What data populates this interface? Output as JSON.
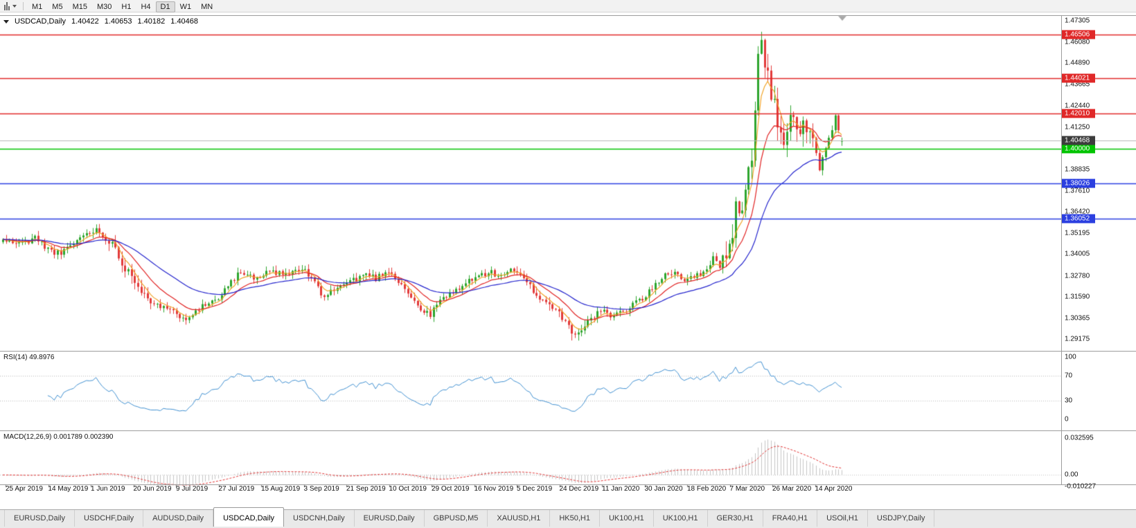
{
  "toolbar": {
    "periods": [
      "M1",
      "M5",
      "M15",
      "M30",
      "H1",
      "H4",
      "D1",
      "W1",
      "MN"
    ],
    "active_period": "D1",
    "icons": [
      "candlestick-chart-icon",
      "chart-menu-caret-icon"
    ]
  },
  "chart": {
    "info": {
      "symbol": "USDCAD,Daily",
      "open": "1.40422",
      "high": "1.40653",
      "low": "1.40182",
      "close": "1.40468"
    },
    "price_axis": {
      "scale": [
        "1.47305",
        "1.46080",
        "1.44890",
        "1.43665",
        "1.42440",
        "1.41250",
        "1.38835",
        "1.37610",
        "1.36420",
        "1.35195",
        "1.34005",
        "1.32780",
        "1.31590",
        "1.30365",
        "1.29175"
      ]
    },
    "levels": [
      {
        "name": "resistance-1",
        "price": "1.46506",
        "line_color": "#e02828",
        "badge_bg": "#e02828",
        "badge_fg": "#ffffff"
      },
      {
        "name": "resistance-2",
        "price": "1.44021",
        "line_color": "#e02828",
        "badge_bg": "#e02828",
        "badge_fg": "#ffffff"
      },
      {
        "name": "resistance-3",
        "price": "1.42010",
        "line_color": "#e02828",
        "badge_bg": "#e02828",
        "badge_fg": "#ffffff"
      },
      {
        "name": "round-level",
        "price": "1.40000",
        "line_color": "#00c400",
        "badge_bg": "#00c400",
        "badge_fg": "#ffffff"
      },
      {
        "name": "support-1",
        "price": "1.38026",
        "line_color": "#2b3fe0",
        "badge_bg": "#2b3fe0",
        "badge_fg": "#ffffff"
      },
      {
        "name": "support-2",
        "price": "1.36052",
        "line_color": "#2b3fe0",
        "badge_bg": "#2b3fe0",
        "badge_fg": "#ffffff"
      }
    ],
    "current_price": {
      "price": "1.40468",
      "line_color": "#b8b8b8",
      "badge_bg": "#3c3c3c",
      "badge_fg": "#ffffff"
    }
  },
  "rsi_pane": {
    "label": "RSI(14) 49.8976",
    "scale": [
      {
        "text": "100",
        "value": 100
      },
      {
        "text": "70",
        "value": 70
      },
      {
        "text": "30",
        "value": 30
      },
      {
        "text": "0",
        "value": 0
      }
    ],
    "levels": [
      70,
      30
    ],
    "line_color": "#3f8fd0"
  },
  "macd_pane": {
    "label": "MACD(12,26,9) 0.001789 0.002390",
    "scale": [
      {
        "text": "0.032595",
        "value": 0.032595
      },
      {
        "text": "0.00",
        "value": 0
      },
      {
        "text": "-0.010227",
        "value": -0.010227
      }
    ],
    "histogram_color": "#c4c4c4",
    "signal_color": "#e03232"
  },
  "chart_data": {
    "type": "candlestick",
    "symbol": "USDCAD",
    "timeframe": "Daily",
    "title": "USDCAD,Daily",
    "current_ohlc": {
      "open": 1.40422,
      "high": 1.40653,
      "low": 1.40182,
      "close": 1.40468
    },
    "y_range": [
      1.29175,
      1.47305
    ],
    "candle_count": 262,
    "x_tick_labels": [
      "25 Apr 2019",
      "14 May 2019",
      "1 Jun 2019",
      "20 Jun 2019",
      "9 Jul 2019",
      "27 Jul 2019",
      "15 Aug 2019",
      "3 Sep 2019",
      "21 Sep 2019",
      "10 Oct 2019",
      "29 Oct 2019",
      "16 Nov 2019",
      "5 Dec 2019",
      "24 Dec 2019",
      "11 Jan 2020",
      "30 Jan 2020",
      "18 Feb 2020",
      "7 Mar 2020",
      "26 Mar 2020",
      "14 Apr 2020"
    ],
    "up_color": "#2da52d",
    "down_color": "#e23a3a",
    "price_anchors": [
      [
        0,
        1.348
      ],
      [
        6,
        1.346
      ],
      [
        10,
        1.3495
      ],
      [
        14,
        1.343
      ],
      [
        18,
        1.34
      ],
      [
        22,
        1.3465
      ],
      [
        26,
        1.352
      ],
      [
        29,
        1.354
      ],
      [
        33,
        1.348
      ],
      [
        38,
        1.333
      ],
      [
        41,
        1.325
      ],
      [
        45,
        1.316
      ],
      [
        49,
        1.31
      ],
      [
        54,
        1.306
      ],
      [
        57,
        1.304
      ],
      [
        60,
        1.3085
      ],
      [
        64,
        1.312
      ],
      [
        67,
        1.316
      ],
      [
        70,
        1.323
      ],
      [
        74,
        1.33
      ],
      [
        77,
        1.327
      ],
      [
        80,
        1.325
      ],
      [
        83,
        1.331
      ],
      [
        87,
        1.328
      ],
      [
        90,
        1.33
      ],
      [
        94,
        1.331
      ],
      [
        97,
        1.323
      ],
      [
        100,
        1.316
      ],
      [
        103,
        1.32
      ],
      [
        107,
        1.324
      ],
      [
        110,
        1.326
      ],
      [
        113,
        1.329
      ],
      [
        116,
        1.3265
      ],
      [
        120,
        1.331
      ],
      [
        124,
        1.323
      ],
      [
        128,
        1.313
      ],
      [
        131,
        1.307
      ],
      [
        133,
        1.3055
      ],
      [
        136,
        1.314
      ],
      [
        140,
        1.318
      ],
      [
        143,
        1.323
      ],
      [
        147,
        1.3265
      ],
      [
        151,
        1.33
      ],
      [
        154,
        1.328
      ],
      [
        158,
        1.3305
      ],
      [
        160,
        1.329
      ],
      [
        163,
        1.324
      ],
      [
        166,
        1.317
      ],
      [
        169,
        1.313
      ],
      [
        173,
        1.307
      ],
      [
        176,
        1.2985
      ],
      [
        178,
        1.2955
      ],
      [
        181,
        1.2995
      ],
      [
        184,
        1.305
      ],
      [
        186,
        1.308
      ],
      [
        189,
        1.3045
      ],
      [
        193,
        1.307
      ],
      [
        196,
        1.312
      ],
      [
        200,
        1.316
      ],
      [
        203,
        1.323
      ],
      [
        206,
        1.329
      ],
      [
        209,
        1.33
      ],
      [
        211,
        1.327
      ],
      [
        213,
        1.325
      ],
      [
        216,
        1.328
      ],
      [
        219,
        1.332
      ],
      [
        221,
        1.338
      ],
      [
        223,
        1.334
      ],
      [
        226,
        1.342
      ],
      [
        228,
        1.366
      ],
      [
        229,
        1.36
      ],
      [
        231,
        1.376
      ],
      [
        233,
        1.398
      ],
      [
        234,
        1.425
      ],
      [
        235,
        1.451
      ],
      [
        236,
        1.462
      ],
      [
        237,
        1.448
      ],
      [
        239,
        1.432
      ],
      [
        241,
        1.415
      ],
      [
        243,
        1.406
      ],
      [
        245,
        1.418
      ],
      [
        247,
        1.41
      ],
      [
        249,
        1.415
      ],
      [
        251,
        1.406
      ],
      [
        253,
        1.396
      ],
      [
        254,
        1.389
      ],
      [
        256,
        1.399
      ],
      [
        258,
        1.412
      ],
      [
        259,
        1.418
      ],
      [
        260,
        1.41
      ],
      [
        261,
        1.40468
      ]
    ],
    "extreme_high": {
      "index": 236,
      "price": 1.4668
    },
    "volatility_windows": [
      [
        33,
        46,
        1.6
      ],
      [
        166,
        181,
        1.4
      ],
      [
        224,
        252,
        3.0
      ]
    ],
    "horizontal_lines": [
      {
        "price": 1.46506,
        "color": "red"
      },
      {
        "price": 1.44021,
        "color": "red"
      },
      {
        "price": 1.4201,
        "color": "red"
      },
      {
        "price": 1.4,
        "color": "green"
      },
      {
        "price": 1.38026,
        "color": "blue"
      },
      {
        "price": 1.36052,
        "color": "blue"
      }
    ],
    "moving_averages": [
      {
        "period": 5,
        "type": "ema",
        "color": "#f0a428"
      },
      {
        "period": 13,
        "type": "ema",
        "color": "#e02020"
      },
      {
        "period": 34,
        "type": "ema",
        "color": "#2222cc"
      }
    ],
    "indicators": {
      "rsi": {
        "period": 14,
        "current": 49.8976,
        "levels": [
          70,
          30
        ],
        "range": [
          0,
          100
        ]
      },
      "macd": {
        "fast": 12,
        "slow": 26,
        "signal": 9,
        "current_macd": 0.001789,
        "current_signal": 0.00239,
        "axis_max": 0.032595,
        "axis_min": -0.010227
      }
    }
  },
  "tabs": {
    "active_index": 3,
    "items": [
      "EURUSD,Daily",
      "USDCHF,Daily",
      "AUDUSD,Daily",
      "USDCAD,Daily",
      "USDCNH,Daily",
      "EURUSD,Daily",
      "GBPUSD,M5",
      "XAUUSD,H1",
      "HK50,H1",
      "UK100,H1",
      "UK100,H1",
      "GER30,H1",
      "FRA40,H1",
      "USOil,H1",
      "USDJPY,Daily"
    ]
  }
}
